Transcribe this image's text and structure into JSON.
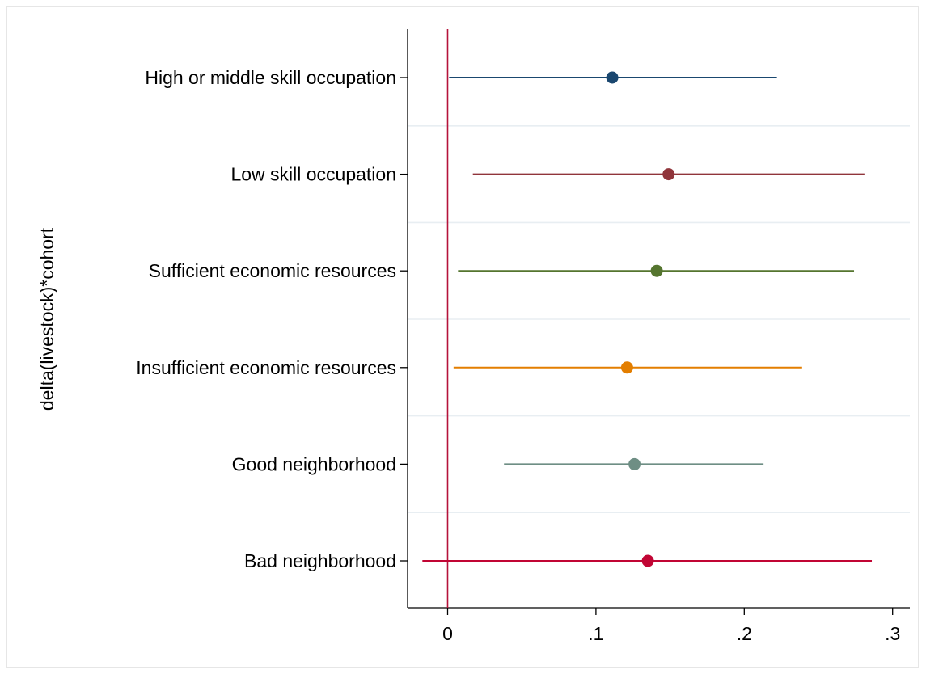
{
  "chart_data": {
    "type": "coefficient_plot",
    "ylabel": "delta(livestock)*cohort",
    "xlabel": "",
    "xlim": [
      -0.025,
      0.305
    ],
    "xticks": [
      {
        "value": 0,
        "label": "0"
      },
      {
        "value": 0.1,
        "label": ".1"
      },
      {
        "value": 0.2,
        "label": ".2"
      },
      {
        "value": 0.3,
        "label": ".3"
      }
    ],
    "reference_line": {
      "x": 0,
      "color": "#b5123a"
    },
    "grid": "horizontal separators between categories",
    "series": [
      {
        "label": "High or middle skill occupation",
        "estimate": 0.111,
        "ci_low": 0.001,
        "ci_high": 0.222,
        "color": "#1a476f"
      },
      {
        "label": "Low skill occupation",
        "estimate": 0.149,
        "ci_low": 0.017,
        "ci_high": 0.281,
        "color": "#90353b"
      },
      {
        "label": "Sufficient economic resources",
        "estimate": 0.141,
        "ci_low": 0.007,
        "ci_high": 0.274,
        "color": "#55752f"
      },
      {
        "label": "Insufficient economic resources",
        "estimate": 0.121,
        "ci_low": 0.004,
        "ci_high": 0.239,
        "color": "#e37e00"
      },
      {
        "label": "Good neighborhood",
        "estimate": 0.126,
        "ci_low": 0.038,
        "ci_high": 0.213,
        "color": "#6e8e84"
      },
      {
        "label": "Bad neighborhood",
        "estimate": 0.135,
        "ci_low": -0.017,
        "ci_high": 0.286,
        "color": "#c10534"
      }
    ]
  }
}
